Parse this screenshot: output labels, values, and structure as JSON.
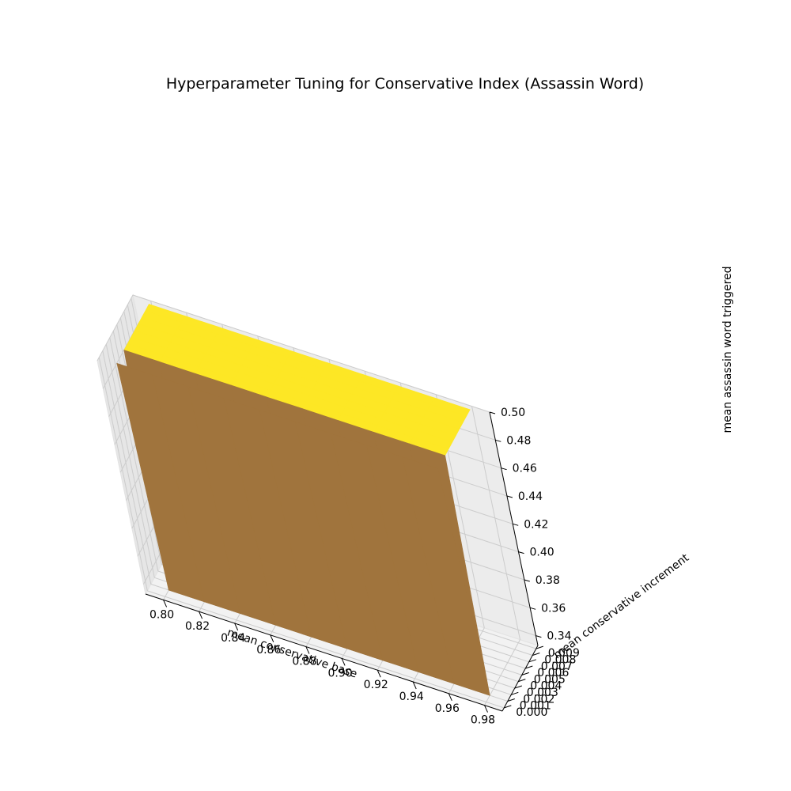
{
  "chart_data": {
    "type": "surface",
    "title": "Hyperparameter Tuning for Conservative Index (Assassin Word)",
    "xlabel": "mean conservative base",
    "ylabel": "mean conservative increment",
    "zlabel": "mean assassin word triggered",
    "x_ticks": [
      "0.80",
      "0.82",
      "0.84",
      "0.86",
      "0.88",
      "0.90",
      "0.92",
      "0.94",
      "0.96",
      "0.98"
    ],
    "y_ticks": [
      "0.000",
      "0.001",
      "0.002",
      "0.003",
      "0.004",
      "0.005",
      "0.006",
      "0.007",
      "0.008",
      "0.009"
    ],
    "z_ticks": [
      "0.34",
      "0.36",
      "0.38",
      "0.40",
      "0.42",
      "0.44",
      "0.46",
      "0.48",
      "0.50"
    ],
    "xlim": [
      0.79,
      0.99
    ],
    "ylim": [
      -0.0005,
      0.0095
    ],
    "zlim": [
      0.333,
      0.5
    ],
    "x": [
      0.8,
      0.82,
      0.84,
      0.86,
      0.88,
      0.9,
      0.92,
      0.94,
      0.96,
      0.98
    ],
    "y": [
      0.0,
      0.001,
      0.002,
      0.003,
      0.004,
      0.005,
      0.006,
      0.007,
      0.008,
      0.009
    ],
    "z_rule": {
      "low_value": 0.333,
      "high_value": 0.5,
      "high_when": "y = 0.000 or y >= 0.002"
    },
    "colormap": "viridis",
    "colors": {
      "high": "#fde725",
      "low": "#440154"
    },
    "grid": true
  }
}
